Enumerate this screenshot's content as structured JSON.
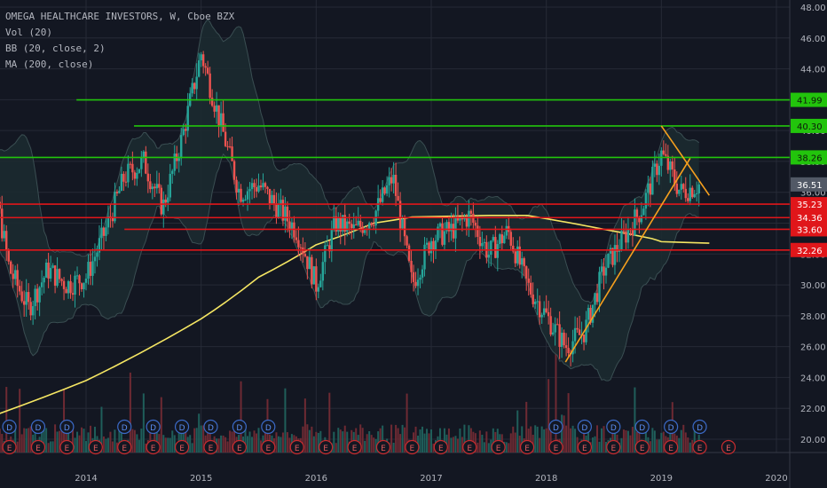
{
  "legend": {
    "symbol": "OMEGA HEALTHCARE INVESTORS, W, Cboe BZX",
    "vol": "Vol (20)",
    "bb": "BB (20, close, 2)",
    "ma": "MA (200, close)"
  },
  "colors": {
    "background": "#131722",
    "grid": "#262a36",
    "axis_text": "#b2b5be",
    "up_candle": "#26a69a",
    "down_candle": "#ef5350",
    "bb_band": "#3a4e52",
    "ma_line": "#f5e663",
    "support_green": "#22c40c",
    "support_red": "#e0161a",
    "trendline": "#f6a01e",
    "last_price_label": "#525966",
    "event_div": "#3b6ac7",
    "event_earnings": "#c82c2f"
  },
  "chart_data": {
    "type": "candlestick",
    "ylim": [
      19.2,
      48.2
    ],
    "y_ticks": [
      "20.00",
      "22.00",
      "24.00",
      "26.00",
      "28.00",
      "30.00",
      "32.00",
      "34.00",
      "36.00",
      "38.00",
      "40.00",
      "42.00",
      "44.00",
      "46.00",
      "48.00"
    ],
    "x_ticks": [
      "2014",
      "2015",
      "2016",
      "2017",
      "2018",
      "2019",
      "2020"
    ],
    "last_price": "36.51",
    "horizontal_levels": [
      {
        "value": 41.99,
        "label": "41.99",
        "color": "green",
        "from": "2013-12"
      },
      {
        "value": 40.3,
        "label": "40.30",
        "color": "green",
        "from": "2014-06"
      },
      {
        "value": 38.26,
        "label": "38.26",
        "color": "green",
        "from": "2013-01"
      },
      {
        "value": 35.23,
        "label": "35.23",
        "color": "red",
        "from": "2013-01"
      },
      {
        "value": 34.36,
        "label": "34.36",
        "color": "red",
        "from": "2013-01"
      },
      {
        "value": 33.6,
        "label": "33.60",
        "color": "red",
        "from": "2014-05"
      },
      {
        "value": 32.26,
        "label": "32.26",
        "color": "red",
        "from": "2013-01"
      }
    ],
    "trendlines": [
      {
        "from": [
          "2018-03",
          25.0
        ],
        "to": [
          "2019-04",
          38.2
        ]
      },
      {
        "from": [
          "2019-01",
          40.3
        ],
        "to": [
          "2019-06",
          35.8
        ]
      }
    ],
    "price_path": [
      [
        "2013-01",
        33
      ],
      [
        "2013-03",
        38
      ],
      [
        "2013-05",
        31
      ],
      [
        "2013-07",
        28.5
      ],
      [
        "2013-09",
        31
      ],
      [
        "2013-11",
        30
      ],
      [
        "2014-01",
        30.5
      ],
      [
        "2014-03",
        33.5
      ],
      [
        "2014-05",
        37
      ],
      [
        "2014-07",
        38
      ],
      [
        "2014-09",
        35
      ],
      [
        "2014-11",
        39.5
      ],
      [
        "2015-01",
        45
      ],
      [
        "2015-03",
        40.5
      ],
      [
        "2015-05",
        36
      ],
      [
        "2015-07",
        36.5
      ],
      [
        "2015-09",
        35
      ],
      [
        "2015-11",
        33.5
      ],
      [
        "2016-01",
        30
      ],
      [
        "2016-03",
        34
      ],
      [
        "2016-05",
        33.5
      ],
      [
        "2016-07",
        34.5
      ],
      [
        "2016-09",
        37
      ],
      [
        "2016-11",
        30
      ],
      [
        "2017-01",
        33
      ],
      [
        "2017-03",
        33.5
      ],
      [
        "2017-05",
        34.5
      ],
      [
        "2017-07",
        32
      ],
      [
        "2017-09",
        33.5
      ],
      [
        "2017-11",
        30
      ],
      [
        "2018-01",
        28
      ],
      [
        "2018-03",
        26
      ],
      [
        "2018-05",
        27
      ],
      [
        "2018-07",
        31
      ],
      [
        "2018-09",
        33
      ],
      [
        "2018-11",
        35
      ],
      [
        "2019-01",
        38.5
      ],
      [
        "2019-03",
        36
      ],
      [
        "2019-05",
        36.51
      ]
    ],
    "ma_path": [
      [
        "2012-11",
        20.6
      ],
      [
        "2014-01",
        23.8
      ],
      [
        "2015-01",
        27.8
      ],
      [
        "2015-07",
        30.5
      ],
      [
        "2016-01",
        32.6
      ],
      [
        "2016-07",
        34.0
      ],
      [
        "2016-11",
        34.4
      ],
      [
        "2017-07",
        34.5
      ],
      [
        "2017-11",
        34.5
      ],
      [
        "2018-07",
        33.6
      ],
      [
        "2018-12",
        33.0
      ],
      [
        "2019-01",
        32.8
      ],
      [
        "2019-06",
        32.7
      ]
    ],
    "div_months": [
      "2013-02",
      "2013-05",
      "2013-08",
      "2013-11",
      "2014-05",
      "2014-08",
      "2014-11",
      "2015-02",
      "2015-05",
      "2015-08",
      "2018-02",
      "2018-05",
      "2018-08",
      "2018-11",
      "2019-02",
      "2019-05"
    ],
    "earnings_months": [
      "2013-02",
      "2013-05",
      "2013-08",
      "2013-11",
      "2014-02",
      "2014-05",
      "2014-08",
      "2014-11",
      "2015-02",
      "2015-05",
      "2015-08",
      "2015-11",
      "2016-02",
      "2016-05",
      "2016-08",
      "2016-11",
      "2017-02",
      "2017-05",
      "2017-08",
      "2017-11",
      "2018-02",
      "2018-05",
      "2018-08",
      "2018-11",
      "2019-02",
      "2019-05",
      "2019-08"
    ],
    "event_labels": {
      "dividend": "D",
      "earnings": "E"
    }
  }
}
